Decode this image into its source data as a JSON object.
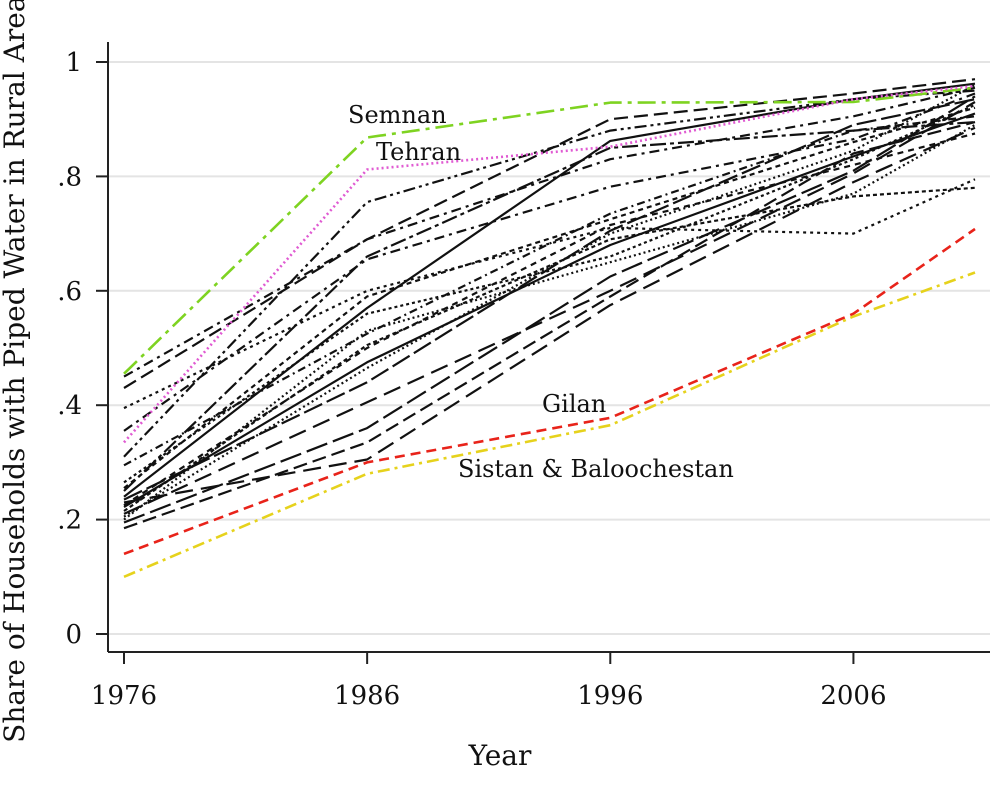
{
  "chart_data": {
    "type": "line",
    "title": "",
    "xlabel": "Year",
    "ylabel": "Share of Households with Piped Water in Rural Areas",
    "x": [
      1976,
      1986,
      1996,
      2006,
      2011
    ],
    "xlim": [
      1976,
      2011
    ],
    "ylim": [
      0,
      1
    ],
    "xticks": [
      {
        "value": 1976,
        "label": "1976"
      },
      {
        "value": 1986,
        "label": "1986"
      },
      {
        "value": 1996,
        "label": "1996"
      },
      {
        "value": 2006,
        "label": "2006"
      }
    ],
    "yticks": [
      {
        "value": 0,
        "label": "0"
      },
      {
        "value": 0.2,
        "label": ".2"
      },
      {
        "value": 0.4,
        "label": ".4"
      },
      {
        "value": 0.6,
        "label": ".6"
      },
      {
        "value": 0.8,
        "label": ".8"
      },
      {
        "value": 1,
        "label": "1"
      }
    ],
    "grid": "horizontal",
    "legend": "none",
    "annotations": [
      {
        "text": "Semnan",
        "x": 1975.0,
        "y": 0.905
      },
      {
        "text": "Tehran",
        "x": 1975.0,
        "y": 0.843
      },
      {
        "text": "Gilan",
        "x": 1975.0,
        "y": 0.395
      },
      {
        "text": "Sistan & Baloochestan",
        "x": 1975.0,
        "y": 0.283
      }
    ],
    "series": [
      {
        "name": "Semnan",
        "color": "#7ed321",
        "dash": "18 6 4 6",
        "values": [
          0.455,
          0.868,
          0.929,
          0.93,
          0.955
        ]
      },
      {
        "name": "Tehran",
        "color": "#e05ad2",
        "dash": "2 3",
        "values": [
          0.335,
          0.812,
          0.852,
          0.935,
          0.958
        ]
      },
      {
        "name": "Gilan",
        "color": "#e8231a",
        "dash": "10 6",
        "values": [
          0.14,
          0.3,
          0.378,
          0.56,
          0.708
        ]
      },
      {
        "name": "Sistan & Baloochestan",
        "color": "#e6d21c",
        "dash": "12 5 3 5",
        "values": [
          0.1,
          0.28,
          0.365,
          0.555,
          0.632
        ]
      },
      {
        "color": "#111111",
        "dash": "",
        "values": [
          0.24,
          0.57,
          0.862,
          0.935,
          0.962
        ]
      },
      {
        "color": "#111111",
        "dash": "",
        "values": [
          0.222,
          0.475,
          0.68,
          0.835,
          0.91
        ]
      },
      {
        "color": "#111111",
        "dash": "14 6",
        "values": [
          0.43,
          0.69,
          0.9,
          0.945,
          0.97
        ]
      },
      {
        "color": "#111111",
        "dash": "14 6",
        "values": [
          0.185,
          0.335,
          0.59,
          0.84,
          0.895
        ]
      },
      {
        "color": "#111111",
        "dash": "18 8",
        "values": [
          0.21,
          0.405,
          0.6,
          0.805,
          0.93
        ]
      },
      {
        "color": "#111111",
        "dash": "18 8",
        "values": [
          0.23,
          0.305,
          0.575,
          0.79,
          0.885
        ]
      },
      {
        "color": "#111111",
        "dash": "10 5 3 5",
        "values": [
          0.45,
          0.69,
          0.83,
          0.905,
          0.955
        ]
      },
      {
        "color": "#111111",
        "dash": "10 5 3 5",
        "values": [
          0.355,
          0.655,
          0.782,
          0.865,
          0.945
        ]
      },
      {
        "color": "#111111",
        "dash": "12 4 3 4 3 4",
        "values": [
          0.31,
          0.755,
          0.88,
          0.935,
          0.95
        ]
      },
      {
        "color": "#111111",
        "dash": "3 4",
        "values": [
          0.395,
          0.6,
          0.71,
          0.7,
          0.795
        ]
      },
      {
        "color": "#111111",
        "dash": "2 3",
        "values": [
          0.2,
          0.53,
          0.65,
          0.77,
          0.89
        ]
      },
      {
        "color": "#111111",
        "dash": "2 3",
        "values": [
          0.205,
          0.465,
          0.7,
          0.845,
          0.96
        ]
      },
      {
        "color": "#111111",
        "dash": "5 4",
        "values": [
          0.255,
          0.59,
          0.725,
          0.86,
          0.92
        ]
      },
      {
        "color": "#111111",
        "dash": "8 4 2 4",
        "values": [
          0.295,
          0.525,
          0.735,
          0.88,
          0.905
        ]
      },
      {
        "color": "#111111",
        "dash": "20 5",
        "values": [
          0.235,
          0.44,
          0.705,
          0.89,
          0.935
        ]
      },
      {
        "color": "#111111",
        "dash": "4 3",
        "values": [
          0.215,
          0.505,
          0.69,
          0.765,
          0.78
        ]
      },
      {
        "color": "#111111",
        "dash": "16 4 4 4",
        "values": [
          0.25,
          0.66,
          0.85,
          0.88,
          0.895
        ]
      },
      {
        "color": "#111111",
        "dash": "6 5",
        "values": [
          0.225,
          0.5,
          0.715,
          0.82,
          0.875
        ]
      },
      {
        "color": "#111111",
        "dash": "22 6",
        "values": [
          0.195,
          0.36,
          0.625,
          0.81,
          0.94
        ]
      },
      {
        "color": "#111111",
        "dash": "3 3",
        "values": [
          0.265,
          0.56,
          0.66,
          0.83,
          0.925
        ]
      }
    ]
  }
}
